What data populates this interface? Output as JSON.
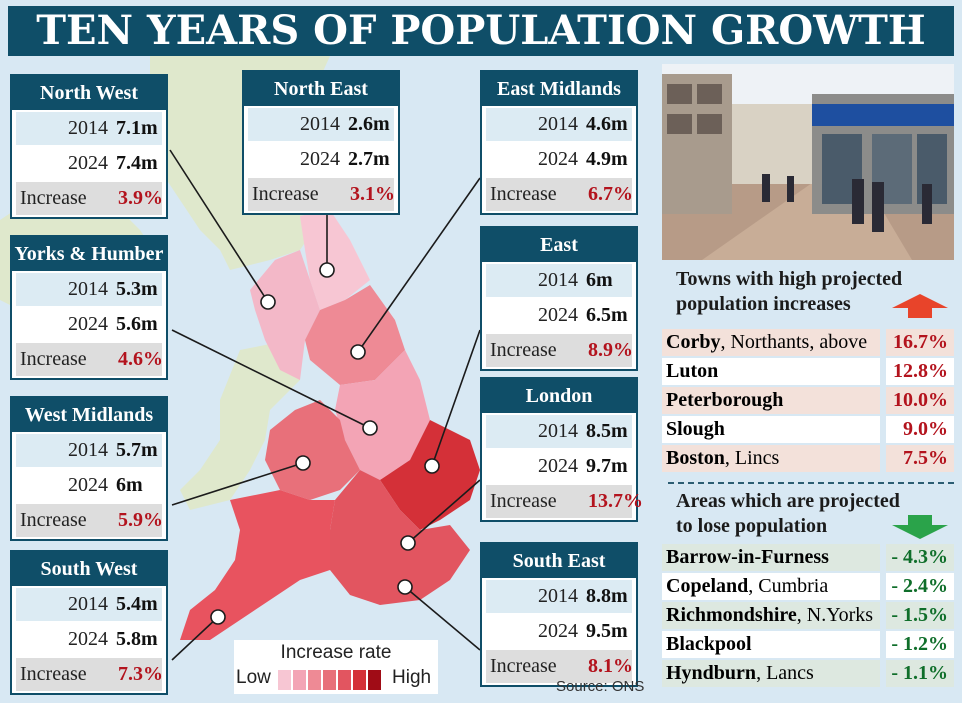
{
  "title": "TEN YEARS OF POPULATION GROWTH",
  "regions": [
    {
      "name": "North West",
      "y2014": "7.1m",
      "y2024": "7.4m",
      "increase": "3.9%"
    },
    {
      "name": "North East",
      "y2014": "2.6m",
      "y2024": "2.7m",
      "increase": "3.1%"
    },
    {
      "name": "East Midlands",
      "y2014": "4.6m",
      "y2024": "4.9m",
      "increase": "6.7%"
    },
    {
      "name": "Yorks & Humber",
      "y2014": "5.3m",
      "y2024": "5.6m",
      "increase": "4.6%"
    },
    {
      "name": "East",
      "y2014": "6m",
      "y2024": "6.5m",
      "increase": "8.9%"
    },
    {
      "name": "West Midlands",
      "y2014": "5.7m",
      "y2024": "6m",
      "increase": "5.9%"
    },
    {
      "name": "London",
      "y2014": "8.5m",
      "y2024": "9.7m",
      "increase": "13.7%"
    },
    {
      "name": "South West",
      "y2014": "5.4m",
      "y2024": "5.8m",
      "increase": "7.3%"
    },
    {
      "name": "South East",
      "y2014": "8.8m",
      "y2024": "9.5m",
      "increase": "8.1%"
    }
  ],
  "labels": {
    "y2014": "2014",
    "y2024": "2024",
    "increase": "Increase"
  },
  "towns_heading": "Towns with high projected population increases",
  "towns_heading_line1": "Towns with high projected",
  "towns_heading_line2": "population increases",
  "towns": [
    {
      "name": "Corby",
      "detail": ", Northants, above",
      "pct": "16.7%"
    },
    {
      "name": "Luton",
      "detail": "",
      "pct": "12.8%"
    },
    {
      "name": "Peterborough",
      "detail": "",
      "pct": "10.0%"
    },
    {
      "name": "Slough",
      "detail": "",
      "pct": "9.0%"
    },
    {
      "name": "Boston",
      "detail": ", Lincs",
      "pct": "7.5%"
    }
  ],
  "areas_heading_line1": "Areas which are projected",
  "areas_heading_line2": "to lose population",
  "areas": [
    {
      "name": "Barrow-in-Furness",
      "detail": "",
      "pct": "- 4.3%"
    },
    {
      "name": "Copeland",
      "detail": ", Cumbria",
      "pct": "- 2.4%"
    },
    {
      "name": "Richmondshire",
      "detail": ", N.Yorks",
      "pct": "- 1.5%"
    },
    {
      "name": "Blackpool",
      "detail": "",
      "pct": "- 1.2%"
    },
    {
      "name": "Hyndburn",
      "detail": ", Lancs",
      "pct": "- 1.1%"
    }
  ],
  "legend": {
    "title": "Increase rate",
    "low": "Low",
    "high": "High"
  },
  "source": "Source: ONS",
  "colors": {
    "header": "#0f4e68",
    "increase_text": "#b3131d",
    "decrease_text": "#0f6e2a",
    "up_arrow": "#e8442a",
    "down_arrow": "#2aa34a"
  },
  "legend_swatches": [
    "#f7c6d3",
    "#f3a4b5",
    "#ee8a95",
    "#e8707a",
    "#e25560",
    "#d43038",
    "#a00c16"
  ]
}
